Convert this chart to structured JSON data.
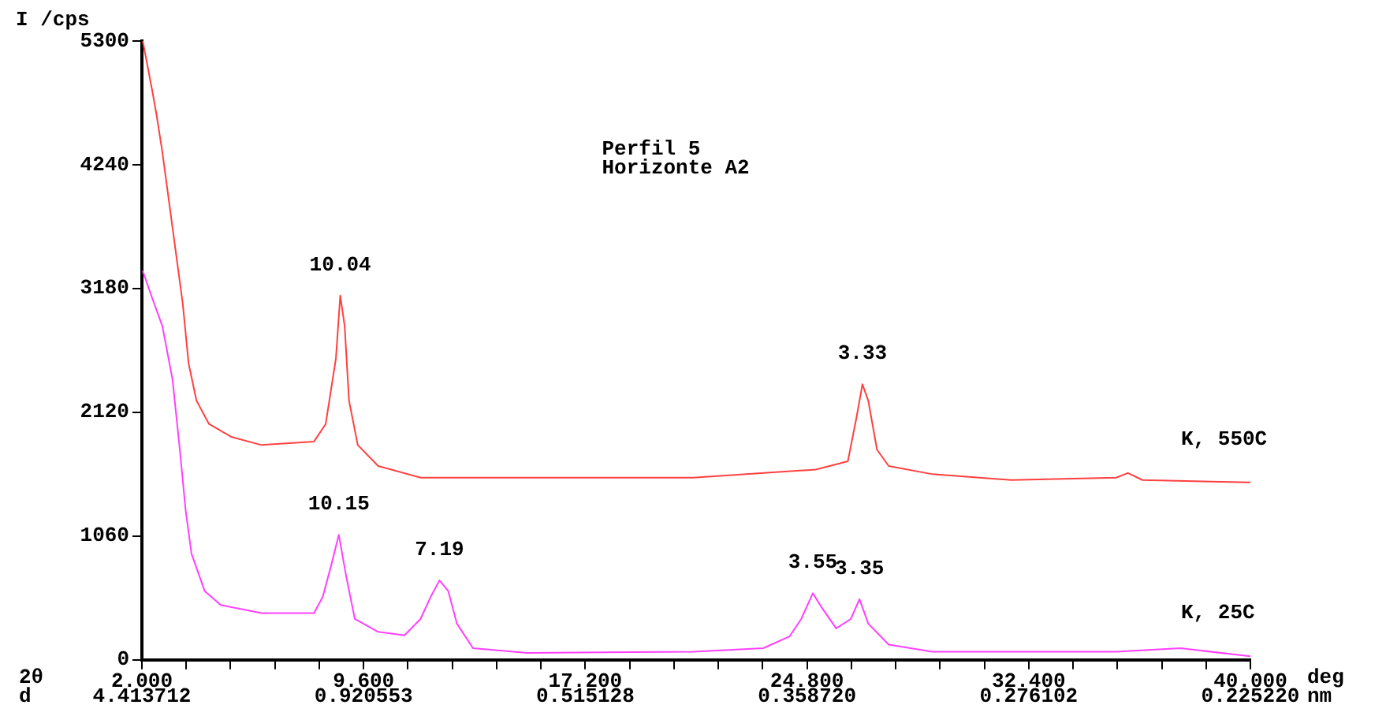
{
  "chart_data": {
    "type": "line",
    "title": "Perfil 5\nHorizonte A2",
    "ylabel": "I /cps",
    "xlabel": "2θ\nd",
    "annotations": [
      "deg\nnm",
      "4.413712",
      "0.920553",
      "0.515128",
      "0.358720",
      "0.276102",
      "0.225220",
      {
        "text": "10.04",
        "x": 8.8,
        "y": 3120
      },
      {
        "text": "3.33",
        "x": 26.7,
        "y": 2360
      },
      {
        "text": "10.15",
        "x": 8.75,
        "y": 1070
      },
      {
        "text": "7.19",
        "x": 12.2,
        "y": 680
      },
      {
        "text": "3.55",
        "x": 25.0,
        "y": 570
      },
      {
        "text": "3.35",
        "x": 26.6,
        "y": 520
      }
    ],
    "series": [
      {
        "name": "K, 550C",
        "color": "#ff4040",
        "x": [
          2.03,
          2.35,
          2.5,
          2.7,
          3.05,
          3.4,
          3.6,
          3.87,
          4.3,
          5.06,
          6.1,
          7.9,
          8.3,
          8.65,
          8.8,
          8.95,
          9.1,
          9.4,
          10.1,
          11.56,
          20.9,
          25.1,
          26.2,
          26.5,
          26.7,
          26.9,
          27.2,
          27.6,
          29.1,
          31.8,
          35.4,
          35.8,
          36.3,
          40
        ],
        "values": [
          5300,
          4880,
          4670,
          4350,
          3700,
          3050,
          2540,
          2220,
          2020,
          1910,
          1840,
          1870,
          2020,
          2580,
          3120,
          2860,
          2220,
          1840,
          1660,
          1560,
          1560,
          1630,
          1700,
          2080,
          2360,
          2220,
          1800,
          1660,
          1590,
          1540,
          1560,
          1600,
          1540,
          1520
        ]
      },
      {
        "name": "K, 25C",
        "color": "#ff40ff",
        "x": [
          2.03,
          2.35,
          2.7,
          3.05,
          3.3,
          3.5,
          3.7,
          4.15,
          4.7,
          6.1,
          7.9,
          8.2,
          8.5,
          8.75,
          9.0,
          9.3,
          10.1,
          11.0,
          11.55,
          11.9,
          12.2,
          12.5,
          12.8,
          13.35,
          15.2,
          20.9,
          23.3,
          24.2,
          24.6,
          25.0,
          25.3,
          25.8,
          26.3,
          26.6,
          26.9,
          27.6,
          29.1,
          35.4,
          37.6,
          40
        ],
        "values": [
          3330,
          3100,
          2860,
          2400,
          1800,
          1280,
          910,
          590,
          470,
          400,
          400,
          540,
          820,
          1070,
          720,
          350,
          240,
          210,
          350,
          540,
          680,
          590,
          310,
          100,
          60,
          70,
          100,
          200,
          350,
          570,
          450,
          270,
          350,
          520,
          310,
          130,
          70,
          70,
          100,
          30
        ]
      }
    ],
    "xlim": [
      2,
      40
    ],
    "xticks": [
      {
        "value": 2,
        "label": "2.000"
      },
      {
        "value": 3.52,
        "label": null
      },
      {
        "value": 5.04,
        "label": null
      },
      {
        "value": 6.56,
        "label": null
      },
      {
        "value": 8.08,
        "label": null
      },
      {
        "value": 9.6,
        "label": "9.600"
      },
      {
        "value": 11.12,
        "label": null
      },
      {
        "value": 12.64,
        "label": null
      },
      {
        "value": 14.16,
        "label": null
      },
      {
        "value": 15.68,
        "label": null
      },
      {
        "value": 17.2,
        "label": "17.200"
      },
      {
        "value": 18.72,
        "label": null
      },
      {
        "value": 20.24,
        "label": null
      },
      {
        "value": 21.76,
        "label": null
      },
      {
        "value": 23.28,
        "label": null
      },
      {
        "value": 24.8,
        "label": "24.800"
      },
      {
        "value": 26.32,
        "label": null
      },
      {
        "value": 27.84,
        "label": null
      },
      {
        "value": 29.36,
        "label": null
      },
      {
        "value": 30.88,
        "label": null
      },
      {
        "value": 32.4,
        "label": "32.400"
      },
      {
        "value": 33.92,
        "label": null
      },
      {
        "value": 35.44,
        "label": null
      },
      {
        "value": 36.96,
        "label": null
      },
      {
        "value": 38.48,
        "label": null
      },
      {
        "value": 40,
        "label": "40.000"
      }
    ],
    "ylim": [
      0,
      5300
    ],
    "yticks": [
      0,
      1060,
      2120,
      3180,
      4240,
      5300
    ],
    "grid": false,
    "legend": false
  }
}
